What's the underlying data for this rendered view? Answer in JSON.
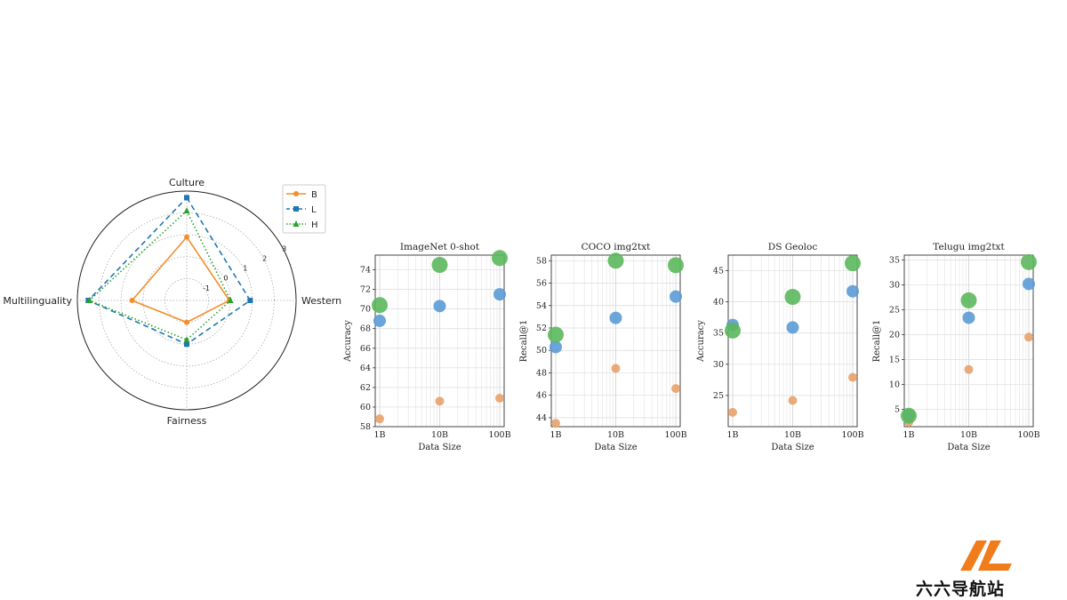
{
  "watermark": {
    "text": "六六导航站"
  },
  "chart_data": [
    {
      "type": "radar",
      "axes": [
        "Culture",
        "Western",
        "Fairness",
        "Multilinguality"
      ],
      "radial_ticks": [
        "-1",
        "0",
        "1",
        "2",
        "3"
      ],
      "rlim": [
        -2,
        3
      ],
      "series": [
        {
          "name": "B",
          "values": [
            0.9,
            -0.05,
            -1.0,
            0.5
          ],
          "color": "#f28e2b",
          "line": "solid",
          "marker": "circle"
        },
        {
          "name": "L",
          "values": [
            2.7,
            0.9,
            0.0,
            2.5
          ],
          "color": "#1f77b4",
          "line": "dashed",
          "marker": "square"
        },
        {
          "name": "H",
          "values": [
            2.1,
            0.0,
            -0.2,
            2.45
          ],
          "color": "#2ca02c",
          "line": "dotted",
          "marker": "triangle"
        }
      ],
      "legend": "top-right"
    },
    {
      "type": "scatter",
      "title": "ImageNet 0-shot",
      "xlabel": "Data Size",
      "ylabel": "Accuracy",
      "x_ticks": [
        "1B",
        "10B",
        "100B"
      ],
      "ylim": [
        58,
        75.5
      ],
      "y_ticks": [
        58,
        60,
        62,
        64,
        66,
        68,
        70,
        72,
        74
      ],
      "series": [
        {
          "name": "B",
          "color": "#e8a26d",
          "size": 5,
          "x": [
            1,
            10,
            100
          ],
          "y": [
            58.8,
            60.6,
            60.9
          ]
        },
        {
          "name": "L",
          "color": "#5b9bd5",
          "size": 7,
          "x": [
            1,
            10,
            100
          ],
          "y": [
            68.8,
            70.3,
            71.5
          ]
        },
        {
          "name": "H",
          "color": "#5cb85c",
          "size": 9,
          "x": [
            1,
            10,
            100
          ],
          "y": [
            70.4,
            74.5,
            75.2
          ]
        }
      ]
    },
    {
      "type": "scatter",
      "title": "COCO img2txt",
      "xlabel": "Data Size",
      "ylabel": "Recall@1",
      "x_ticks": [
        "1B",
        "10B",
        "100B"
      ],
      "ylim": [
        43.2,
        58.5
      ],
      "y_ticks": [
        44,
        46,
        48,
        50,
        52,
        54,
        56,
        58
      ],
      "series": [
        {
          "name": "B",
          "color": "#e8a26d",
          "size": 5,
          "x": [
            1,
            10,
            100
          ],
          "y": [
            43.5,
            48.4,
            46.6
          ]
        },
        {
          "name": "L",
          "color": "#5b9bd5",
          "size": 7,
          "x": [
            1,
            10,
            100
          ],
          "y": [
            50.3,
            52.9,
            54.8
          ]
        },
        {
          "name": "H",
          "color": "#5cb85c",
          "size": 9,
          "x": [
            1,
            10,
            100
          ],
          "y": [
            51.4,
            58.0,
            57.6
          ]
        }
      ]
    },
    {
      "type": "scatter",
      "title": "DS Geoloc",
      "xlabel": "Data Size",
      "ylabel": "Accuracy",
      "x_ticks": [
        "1B",
        "10B",
        "100B"
      ],
      "ylim": [
        20,
        47.5
      ],
      "y_ticks": [
        25,
        30,
        35,
        40,
        45
      ],
      "series": [
        {
          "name": "B",
          "color": "#e8a26d",
          "size": 5,
          "x": [
            1,
            10,
            100
          ],
          "y": [
            22.3,
            24.2,
            27.9
          ]
        },
        {
          "name": "L",
          "color": "#5b9bd5",
          "size": 7,
          "x": [
            1,
            10,
            100
          ],
          "y": [
            36.3,
            35.9,
            41.7
          ]
        },
        {
          "name": "H",
          "color": "#5cb85c",
          "size": 9,
          "x": [
            1,
            10,
            100
          ],
          "y": [
            35.4,
            40.8,
            46.2
          ]
        }
      ]
    },
    {
      "type": "scatter",
      "title": "Telugu img2txt",
      "xlabel": "Data Size",
      "ylabel": "Recall@1",
      "x_ticks": [
        "1B",
        "10B",
        "100B"
      ],
      "ylim": [
        1.5,
        36
      ],
      "y_ticks": [
        5,
        10,
        15,
        20,
        25,
        30,
        35
      ],
      "series": [
        {
          "name": "B",
          "color": "#e8a26d",
          "size": 5,
          "x": [
            1,
            10,
            100
          ],
          "y": [
            2.4,
            13.0,
            19.5
          ]
        },
        {
          "name": "L",
          "color": "#5b9bd5",
          "size": 7,
          "x": [
            1,
            10,
            100
          ],
          "y": [
            3.8,
            23.4,
            30.2
          ]
        },
        {
          "name": "H",
          "color": "#5cb85c",
          "size": 9,
          "x": [
            1,
            10,
            100
          ],
          "y": [
            3.7,
            26.9,
            34.6
          ]
        }
      ]
    }
  ]
}
